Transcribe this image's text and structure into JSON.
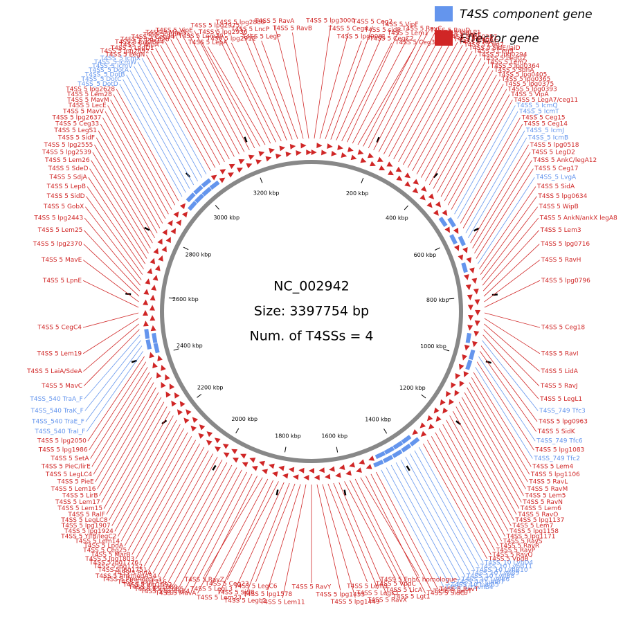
{
  "title": "NC_002942",
  "size": {
    "value": 3397754,
    "label": "Size: 3397754 bp"
  },
  "summary": "Num. of T4SSs = 4",
  "ticks": [
    {
      "value": 200000,
      "label": "200 kbp"
    },
    {
      "value": 400000,
      "label": "400 kbp"
    },
    {
      "value": 600000,
      "label": "600 kbp"
    },
    {
      "value": 800000,
      "label": "800 kbp"
    },
    {
      "value": 1000000,
      "label": "1000 kbp"
    },
    {
      "value": 1200000,
      "label": "1200 kbp"
    },
    {
      "value": 1400000,
      "label": "1400 kbp"
    },
    {
      "value": 1600000,
      "label": "1600 kbp"
    },
    {
      "value": 1800000,
      "label": "1800 kbp"
    },
    {
      "value": 2000000,
      "label": "2000 kbp"
    },
    {
      "value": 2200000,
      "label": "2200 kbp"
    },
    {
      "value": 2400000,
      "label": "2400 kbp"
    },
    {
      "value": 2600000,
      "label": "2600 kbp"
    },
    {
      "value": 2800000,
      "label": "2800 kbp"
    },
    {
      "value": 3000000,
      "label": "3000 kbp"
    },
    {
      "value": 3200000,
      "label": "3200 kbp"
    }
  ],
  "legend": [
    {
      "label": "T4SS component gene",
      "color": "#6495ed"
    },
    {
      "label": "Effector gene",
      "color": "#d02626"
    }
  ],
  "genes": [
    "T4SS 5 lpg3000",
    "T4SS 5 Ceg4",
    "T4SS 5 lpg0081",
    "T4SS 5 Ceg2",
    "T4SS 5 sidP",
    "T4SS 5 CegC2",
    "T4SS 5 VipF",
    "T4SS 5 Lem1",
    "T4SS 5 Ceg3",
    "T4SS 5 RavC",
    "T4SS 5 RavD",
    "T4SS 5 cetLP1",
    "T4SS 5 RavF",
    "T4SS 5 lpg0257",
    "T4SS 5 Ceg8",
    "T4SS 5 RavG",
    "T4SS 5 Ceg7",
    "T4SS 5 SidE/laiD",
    "T4SS 5 Ceg9",
    "T4SS 5 lpg0294",
    "T4SS 5 LegG2",
    "T4SS 5 Lem2",
    "T4SS 5 lpg0364",
    "T4SS 5 SdhA",
    "T4SS 5 lpg0405",
    "T4SS 5 lpg0365",
    "T4SS 5 lpg0375",
    "T4SS 5 lpg0393",
    "T4SS 5 VipA",
    "T4SS 5 LegA7/ceg11",
    "T4SS_5 IcmQ",
    "T4SS_5 IcmT",
    "T4SS 5 Ceg15",
    "T4SS 5 Ceg14",
    "T4SS_5 IcmJ",
    "T4SS_5 IcmB",
    "T4SS 5 lpg0518",
    "T4SS 5 LegD2",
    "T4SS 5 AnkC/legA12",
    "T4SS 5 Ceg17",
    "T4SS_5 LvgA",
    "T4SS 5 SidA",
    "T4SS 5 lpg0634",
    "T4SS 5 WipB",
    "T4SS 5 AnkN/ankX legA8",
    "T4SS 5 Lem3",
    "T4SS 5 lpg0716",
    "T4SS 5 RavH",
    "T4SS 5 lpg0796",
    "T4SS 5 Ceg18",
    "T4SS 5 RavI",
    "T4SS 5 LidA",
    "T4SS 5 RavJ",
    "T4SS 5 LegL1",
    "T4SS_749 Tfc3",
    "T4SS 5 lpg0963",
    "T4SS 5 SidK",
    "T4SS_749 Tfc6",
    "T4SS 5 lpg1083",
    "T4SS_749 Tfc2",
    "T4SS 5 Lem4",
    "T4SS 5 lpg1106",
    "T4SS 5 RavL",
    "T4SS 5 RavM",
    "T4SS 5 Lem5",
    "T4SS 5 RavN",
    "T4SS 5 Lem6",
    "T4SS 5 RavO",
    "T4SS 5 lpg1137",
    "T4SS 5 Lem7",
    "T4SS 5 lpg1158",
    "T4SS 5 lpg1171",
    "T4SS 5 RavS",
    "T4SS 5 RavR",
    "T4SS 5 RavP",
    "T4SS 5 RavQ",
    "T4SS 5 VpdB",
    "T4SS_10 LvhD4",
    "T4SS_10 LvhB11",
    "T4SS_10 LvhB10",
    "T4SS_10 LvhB9",
    "T4SS_10 LvhB8",
    "T4SS_10 LvhB6",
    "T4SS_10 LvhB7",
    "T4SS_10 LvhB5",
    "T4SS_10 LvhB4",
    "T4SS 5 RavT",
    "T4SS 5 LegT",
    "T4SS 5 SidG",
    "T4SS 5 EnhC homologue",
    "T4SS 5 Lgt1",
    "T4SS 5 LicA",
    "T4SS 5 VpdC",
    "T4SS 5 RavX",
    "T4SS 5 LegK1",
    "T4SS 5 Lem9",
    "T4SS 5 lpg1449",
    "T4SS 5 lpg1453",
    "T4SS 5 RavY",
    "T4SS 5 Lem11",
    "T4SS 5 lpg1578",
    "T4SS 5 LegC6",
    "T4SS 5 LegL2",
    "T4SS 5 SidB",
    "T4SS 5 Ceg23",
    "T4SS 5 Lem23",
    "T4SS 5 LegL3",
    "T4SS 5 RavZ",
    "T4SS 5 MavA",
    "T4SS 5 lpg1684",
    "T4SS 5 lpg1685",
    "T4SS 5 lpg1689",
    "T4SS 5 lpg1692",
    "T4SS 5 lpg1716",
    "T4SS 5 PpeA/legC3",
    "T4SS 5 AnkI/legAS4",
    "T4SS 5 RvfA",
    "T4SS 5 lpg1751",
    "T4SS 5 lpg1752",
    "T4SS 5 lpg1776",
    "T4SS 5 lpg1803",
    "T4SS 5 MarB",
    "T4SS 5 Ceg25",
    "T4SS 5 LpdA",
    "T4SS 5 Lem14",
    "T4SS 5 YlfB/legC2",
    "T4SS 5 lpg1924",
    "T4SS 5 lpg1907",
    "T4SS 5 LegLC8",
    "T4SS 5 RalF",
    "T4SS 5 Lem15",
    "T4SS 5 Lem17",
    "T4SS 5 LirB",
    "T4SS 5 Lem16",
    "T4SS 5 PieE",
    "T4SS 5 LegLC4",
    "T4SS 5 PieC/lirE",
    "T4SS 5 SetA",
    "T4SS 5 lpg1986",
    "T4SS 5 lpg2050",
    "T4SS_540 TraI_F",
    "T4SS_540 TraE_F",
    "T4SS_540 TraK_F",
    "T4SS_540 TraA_F",
    "T4SS 5 MavC",
    "T4SS 5 LaiA/SdeA",
    "T4SS 5 Lem19",
    "T4SS 5 CegC4",
    "T4SS 5 LpnE",
    "T4SS 5 MavE",
    "T4SS 5 lpg2370",
    "T4SS 5 Lem25",
    "T4SS 5 lpg2443",
    "T4SS 5 GobX",
    "T4SS 5 SidD",
    "T4SS 5 LepB",
    "T4SS 5 SdjA",
    "T4SS 5 SdeD",
    "T4SS 5 Lem26",
    "T4SS 5 lpg2539",
    "T4SS 5 lpg2555",
    "T4SS 5 SidF",
    "T4SS 5 LegS1",
    "T4SS 5 Ceg33",
    "T4SS 5 lpg2637",
    "T4SS 5 MavV",
    "T4SS 5 LecE",
    "T4SS 5 MavM",
    "T4SS 5 Lem28",
    "T4SS 5 lpg2628",
    "T4SS_5 DotD",
    "T4SS_5 DotC",
    "T4SS_5 DotB",
    "T4SS_5 DotA",
    "T4SS_5 IcmV",
    "T4SS_5 IcmW",
    "T4SS_5 IcmX",
    "T4SS 5 LegN",
    "T4SS 5 lpg2692",
    "T4SS 5 LegD1",
    "T4SS 5 WipA",
    "T4SS 5 lpg2844",
    "T4SS 5 lpg2828",
    "T4SS 5 Ceg34",
    "T4SS 5 lppA",
    "T4SS 5 MavN",
    "T4SS 5 VipE",
    "T4SS 5 Lem29",
    "T4SS 5 LepA",
    "T4SS 5 lpg2975",
    "T4SS 5 lpg2936",
    "T4SS 5 lpg2912",
    "T4SS 5 lpg2888",
    "T4SS 5 LncP",
    "T4SS 5 LegP",
    "T4SS 5 RavA",
    "T4SS 5 RavB"
  ]
}
